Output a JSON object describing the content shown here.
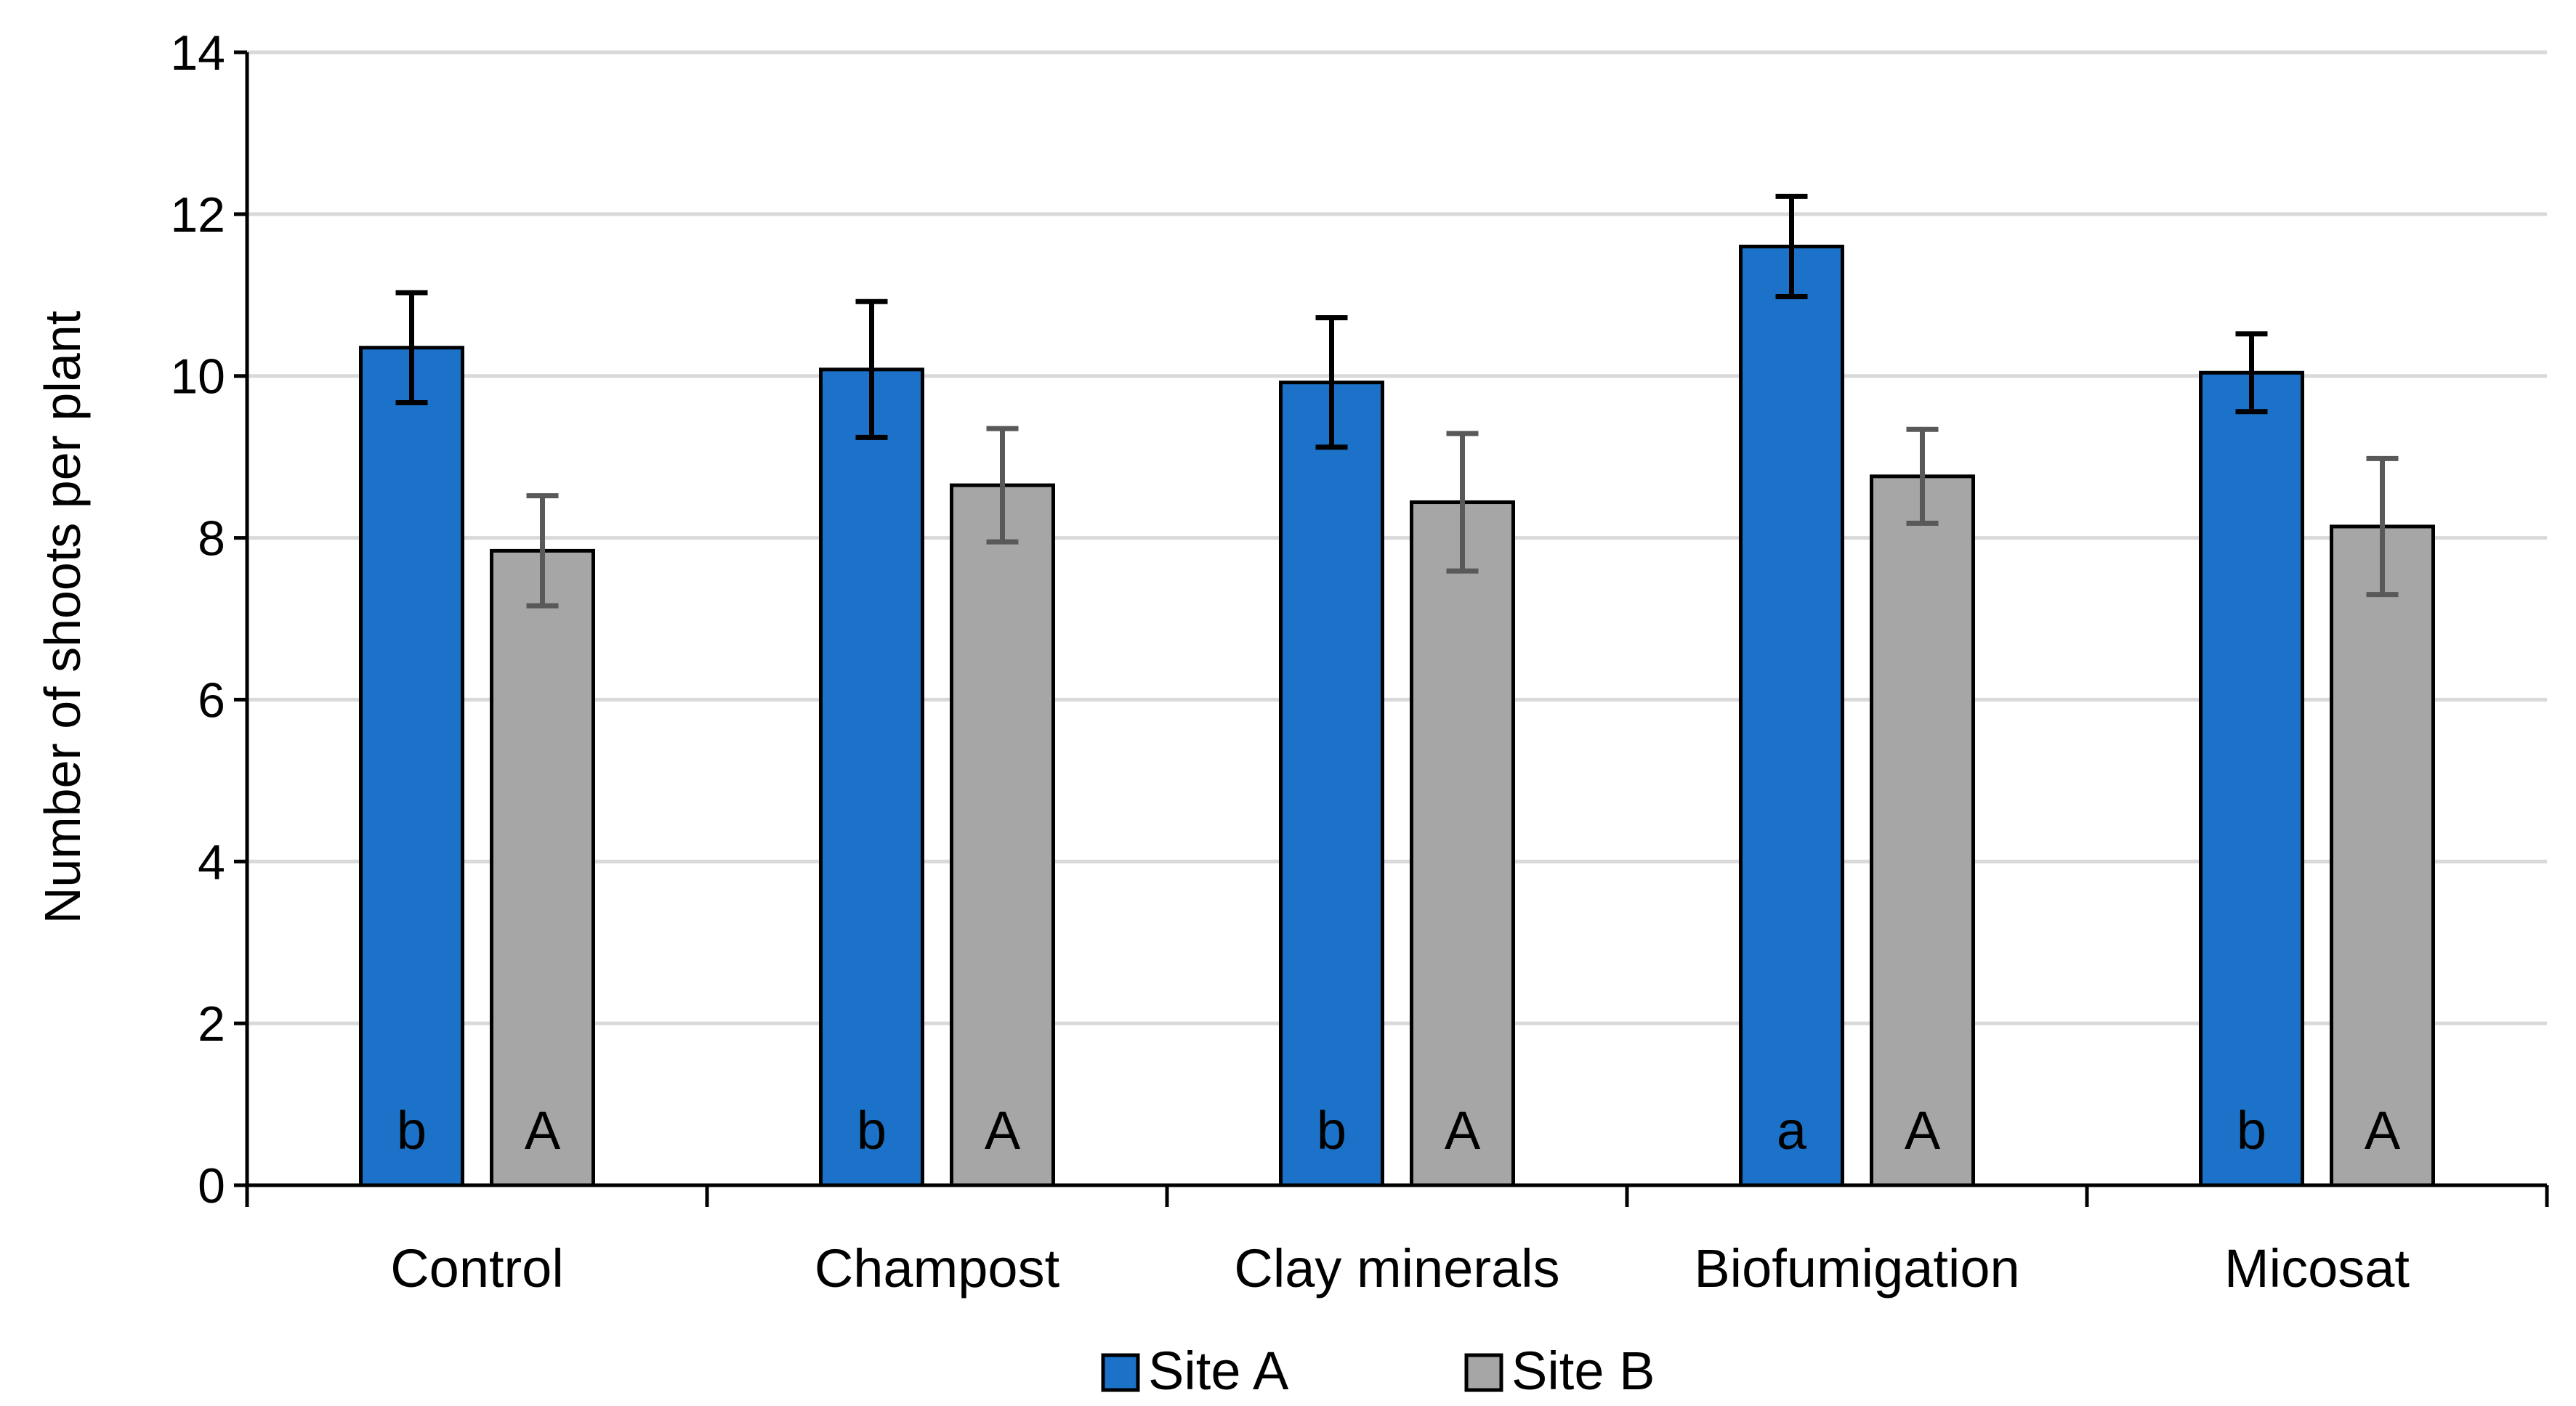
{
  "chart_data": {
    "type": "bar",
    "title": "",
    "xlabel": "",
    "ylabel": "Number of shoots per plant",
    "ylim": [
      0,
      14
    ],
    "ytick_step": 2,
    "grid": true,
    "legend_position": "bottom-center",
    "categories": [
      "Control",
      "Champost",
      "Clay minerals",
      "Biofumigation",
      "Micosat"
    ],
    "series": [
      {
        "name": "Site A",
        "color": "#1b72c8",
        "error_color": "#000000",
        "values": [
          10.35,
          10.08,
          9.92,
          11.6,
          10.04
        ],
        "errors": [
          0.68,
          0.84,
          0.8,
          0.62,
          0.48
        ],
        "significance": [
          "b",
          "b",
          "b",
          "a",
          "b"
        ]
      },
      {
        "name": "Site B",
        "color": "#a6a6a6",
        "error_color": "#595959",
        "values": [
          7.84,
          8.65,
          8.44,
          8.76,
          8.14
        ],
        "errors": [
          0.68,
          0.7,
          0.85,
          0.58,
          0.84
        ],
        "significance": [
          "A",
          "A",
          "A",
          "A",
          "A"
        ]
      }
    ]
  }
}
